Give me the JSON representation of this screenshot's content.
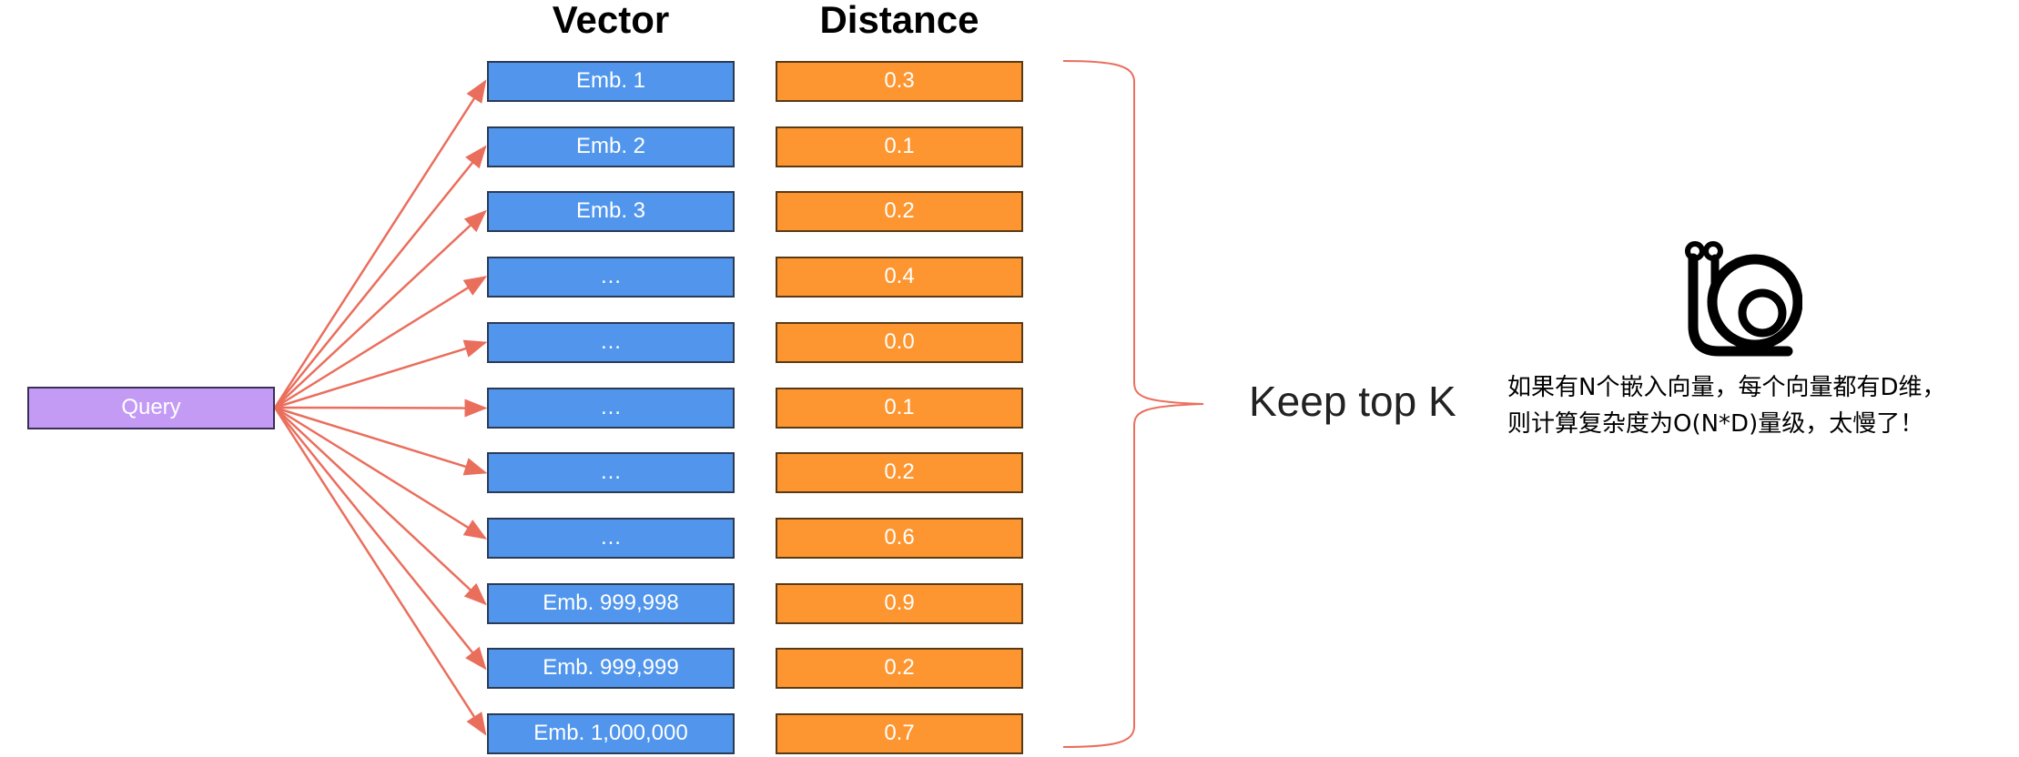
{
  "headers": {
    "vector": "Vector",
    "distance": "Distance"
  },
  "query": "Query",
  "rows": [
    {
      "vector": "Emb. 1",
      "distance": "0.3"
    },
    {
      "vector": "Emb. 2",
      "distance": "0.1"
    },
    {
      "vector": "Emb. 3",
      "distance": "0.2"
    },
    {
      "vector": "…",
      "distance": "0.4"
    },
    {
      "vector": "…",
      "distance": "0.0"
    },
    {
      "vector": "…",
      "distance": "0.1"
    },
    {
      "vector": "…",
      "distance": "0.2"
    },
    {
      "vector": "…",
      "distance": "0.6"
    },
    {
      "vector": "Emb. 999,998",
      "distance": "0.9"
    },
    {
      "vector": "Emb. 999,999",
      "distance": "0.2"
    },
    {
      "vector": "Emb. 1,000,000",
      "distance": "0.7"
    }
  ],
  "keep_label": "Keep top K",
  "note": {
    "line1": "如果有N个嵌入向量，每个向量都有D维，",
    "line2": "则计算复杂度为O(N*D)量级，太慢了！"
  },
  "icon": "snail-icon",
  "colors": {
    "vector_fill": "#5196ec",
    "distance_fill": "#fd9630",
    "query_fill": "#c39bf5",
    "arrow": "#ea6e5c",
    "brace": "#ea6e5c"
  }
}
